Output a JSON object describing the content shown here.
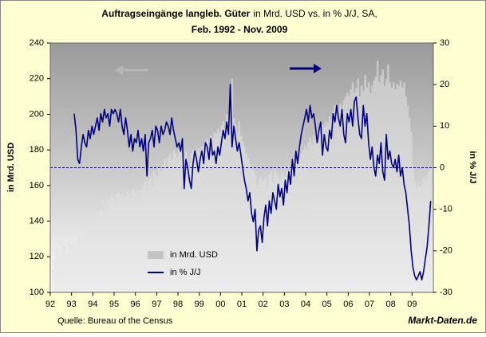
{
  "chart_data": {
    "type": "combo",
    "title": "Auftragseingänge langleb. Güter",
    "subtitle": "in Mrd. USD vs. in % J/J, SA,",
    "period": "Feb. 1992 - Nov. 2009",
    "ylabel": "in Mrd. USD",
    "y2label": "in % J/J",
    "source": "Quelle: Bureau of the Census",
    "brand": "Markt-Daten.de",
    "legend": "bottom-left",
    "y2_zero_line": true,
    "xlim": [
      1992,
      2010
    ],
    "xticks": [
      {
        "value": 1992,
        "label": "92"
      },
      {
        "value": 1993,
        "label": "93"
      },
      {
        "value": 1994,
        "label": "94"
      },
      {
        "value": 1995,
        "label": "95"
      },
      {
        "value": 1996,
        "label": "96"
      },
      {
        "value": 1997,
        "label": "97"
      },
      {
        "value": 1998,
        "label": "98"
      },
      {
        "value": 1999,
        "label": "99"
      },
      {
        "value": 2000,
        "label": "00"
      },
      {
        "value": 2001,
        "label": "01"
      },
      {
        "value": 2002,
        "label": "02"
      },
      {
        "value": 2003,
        "label": "03"
      },
      {
        "value": 2004,
        "label": "04"
      },
      {
        "value": 2005,
        "label": "05"
      },
      {
        "value": 2006,
        "label": "06"
      },
      {
        "value": 2007,
        "label": "07"
      },
      {
        "value": 2008,
        "label": "08"
      },
      {
        "value": 2009,
        "label": "09"
      }
    ],
    "ylim": [
      100,
      240
    ],
    "yticks": [
      100,
      120,
      140,
      160,
      180,
      200,
      220,
      240
    ],
    "y2lim": [
      -30,
      30
    ],
    "y2ticks": [
      -30,
      -20,
      -10,
      0,
      10,
      20,
      30
    ],
    "x": [
      1992.083,
      1992.167,
      1992.25,
      1992.333,
      1992.417,
      1992.5,
      1992.583,
      1992.667,
      1992.75,
      1992.833,
      1992.917,
      1993,
      1993.083,
      1993.167,
      1993.25,
      1993.333,
      1993.417,
      1993.5,
      1993.583,
      1993.667,
      1993.75,
      1993.833,
      1993.917,
      1994,
      1994.083,
      1994.167,
      1994.25,
      1994.333,
      1994.417,
      1994.5,
      1994.583,
      1994.667,
      1994.75,
      1994.833,
      1994.917,
      1995,
      1995.083,
      1995.167,
      1995.25,
      1995.333,
      1995.417,
      1995.5,
      1995.583,
      1995.667,
      1995.75,
      1995.833,
      1995.917,
      1996,
      1996.083,
      1996.167,
      1996.25,
      1996.333,
      1996.417,
      1996.5,
      1996.583,
      1996.667,
      1996.75,
      1996.833,
      1996.917,
      1997,
      1997.083,
      1997.167,
      1997.25,
      1997.333,
      1997.417,
      1997.5,
      1997.583,
      1997.667,
      1997.75,
      1997.833,
      1997.917,
      1998,
      1998.083,
      1998.167,
      1998.25,
      1998.333,
      1998.417,
      1998.5,
      1998.583,
      1998.667,
      1998.75,
      1998.833,
      1998.917,
      1999,
      1999.083,
      1999.167,
      1999.25,
      1999.333,
      1999.417,
      1999.5,
      1999.583,
      1999.667,
      1999.75,
      1999.833,
      1999.917,
      2000,
      2000.083,
      2000.167,
      2000.25,
      2000.333,
      2000.417,
      2000.5,
      2000.583,
      2000.667,
      2000.75,
      2000.833,
      2000.917,
      2001,
      2001.083,
      2001.167,
      2001.25,
      2001.333,
      2001.417,
      2001.5,
      2001.583,
      2001.667,
      2001.75,
      2001.833,
      2001.917,
      2002,
      2002.083,
      2002.167,
      2002.25,
      2002.333,
      2002.417,
      2002.5,
      2002.583,
      2002.667,
      2002.75,
      2002.833,
      2002.917,
      2003,
      2003.083,
      2003.167,
      2003.25,
      2003.333,
      2003.417,
      2003.5,
      2003.583,
      2003.667,
      2003.75,
      2003.833,
      2003.917,
      2004,
      2004.083,
      2004.167,
      2004.25,
      2004.333,
      2004.417,
      2004.5,
      2004.583,
      2004.667,
      2004.75,
      2004.833,
      2004.917,
      2005,
      2005.083,
      2005.167,
      2005.25,
      2005.333,
      2005.417,
      2005.5,
      2005.583,
      2005.667,
      2005.75,
      2005.833,
      2005.917,
      2006,
      2006.083,
      2006.167,
      2006.25,
      2006.333,
      2006.417,
      2006.5,
      2006.583,
      2006.667,
      2006.75,
      2006.833,
      2006.917,
      2007,
      2007.083,
      2007.167,
      2007.25,
      2007.333,
      2007.417,
      2007.5,
      2007.583,
      2007.667,
      2007.75,
      2007.833,
      2007.917,
      2008,
      2008.083,
      2008.167,
      2008.25,
      2008.333,
      2008.417,
      2008.5,
      2008.583,
      2008.667,
      2008.75,
      2008.833,
      2008.917,
      2009,
      2009.083,
      2009.167,
      2009.25,
      2009.333,
      2009.417,
      2009.5,
      2009.583,
      2009.667,
      2009.75,
      2009.833
    ],
    "series": [
      {
        "name": "in Mrd. USD",
        "type": "bar",
        "color": "#c4c4c4",
        "values": [
          113,
          118,
          125,
          122,
          120,
          123,
          126,
          125,
          122,
          128,
          127,
          127,
          128,
          126,
          130,
          132,
          129,
          131,
          133,
          132,
          137,
          135,
          140,
          138,
          142,
          145,
          143,
          147,
          145,
          149,
          148,
          152,
          150,
          155,
          153,
          152,
          155,
          156,
          153,
          155,
          152,
          154,
          157,
          155,
          153,
          158,
          156,
          155,
          157,
          152,
          158,
          160,
          162,
          157,
          163,
          165,
          160,
          168,
          166,
          165,
          170,
          168,
          172,
          175,
          170,
          176,
          178,
          174,
          180,
          178,
          176,
          180,
          178,
          182,
          176,
          179,
          175,
          170,
          178,
          180,
          177,
          179,
          181,
          178,
          182,
          180,
          184,
          186,
          183,
          188,
          187,
          190,
          189,
          192,
          190,
          194,
          196,
          192,
          200,
          197,
          195,
          220,
          198,
          194,
          190,
          196,
          188,
          185,
          182,
          178,
          175,
          172,
          170,
          168,
          166,
          160,
          162,
          165,
          163,
          163,
          165,
          160,
          166,
          168,
          162,
          170,
          167,
          165,
          163,
          168,
          166,
          165,
          168,
          164,
          170,
          172,
          168,
          175,
          174,
          176,
          178,
          180,
          182,
          180,
          184,
          187,
          183,
          188,
          185,
          190,
          192,
          189,
          194,
          193,
          196,
          195,
          199,
          197,
          202,
          205,
          200,
          203,
          206,
          204,
          208,
          210,
          212,
          210,
          214,
          218,
          212,
          215,
          220,
          210,
          216,
          213,
          222,
          215,
          218,
          212,
          216,
          219,
          221,
          230,
          218,
          222,
          225,
          216,
          220,
          228,
          218,
          215,
          218,
          214,
          217,
          216,
          219,
          215,
          218,
          210,
          205,
          198,
          190,
          170,
          162,
          158,
          160,
          159,
          161,
          165,
          163,
          166,
          168,
          170
        ]
      },
      {
        "name": "in % J/J",
        "type": "line",
        "axis": "y2",
        "color": "#000080",
        "values": [
          null,
          null,
          null,
          null,
          null,
          null,
          null,
          null,
          null,
          null,
          null,
          null,
          13,
          9,
          2,
          1,
          5,
          8,
          6,
          5,
          9,
          7,
          10,
          8,
          10,
          12,
          9,
          13,
          11,
          14,
          12,
          13,
          10,
          14,
          13,
          14,
          13,
          11,
          14,
          10,
          8,
          12,
          9,
          5,
          8,
          4,
          7,
          6,
          9,
          5,
          7,
          4,
          8,
          -2,
          6,
          7,
          9,
          5,
          10,
          9,
          6,
          10,
          8,
          9,
          11,
          10,
          8,
          12,
          9,
          7,
          5,
          6,
          4,
          7,
          -5,
          2,
          0,
          -3,
          -5,
          1,
          4,
          2,
          -1,
          2,
          4,
          1,
          6,
          5,
          2,
          7,
          3,
          4,
          1,
          5,
          3,
          6,
          9,
          7,
          11,
          8,
          20,
          5,
          10,
          7,
          4,
          6,
          3,
          0,
          -3,
          -5,
          -8,
          -6,
          -11,
          -13,
          -10,
          -20,
          -15,
          -14,
          -18,
          -12,
          -9,
          -14,
          -8,
          -11,
          -6,
          -8,
          -10,
          -4,
          -7,
          -5,
          -9,
          -3,
          -6,
          -1,
          -4,
          2,
          -2,
          4,
          1,
          5,
          8,
          10,
          12,
          14,
          11,
          15,
          12,
          13,
          10,
          6,
          9,
          11,
          3,
          8,
          5,
          4,
          9,
          7,
          13,
          11,
          15,
          12,
          10,
          14,
          8,
          6,
          13,
          11,
          14,
          10,
          16,
          17,
          12,
          8,
          7,
          15,
          10,
          13,
          6,
          2,
          5,
          0,
          -2,
          3,
          1,
          6,
          -1,
          -3,
          8,
          2,
          4,
          1,
          0,
          2,
          -1,
          3,
          -2,
          0,
          -4,
          -6,
          -10,
          -14,
          -20,
          -24,
          -26,
          -27,
          -26,
          -25,
          -27,
          -25,
          -22,
          -19,
          -14,
          -8
        ]
      }
    ]
  }
}
